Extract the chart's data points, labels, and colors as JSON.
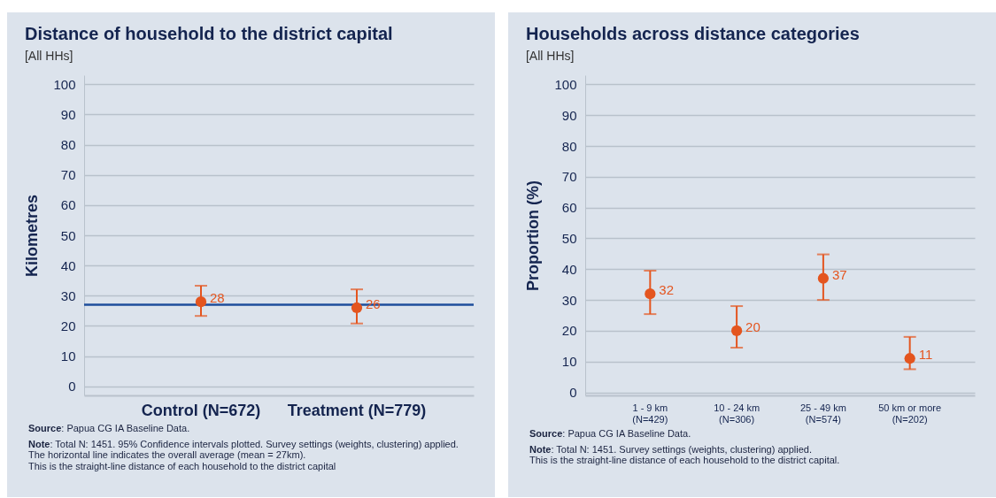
{
  "chart_data": [
    {
      "type": "scatter",
      "title": "Distance of household to the district capital",
      "subtitle": "[All HHs]",
      "ylabel": "Kilometres",
      "categories": [
        "Control (N=672)",
        "Treatment (N=779)"
      ],
      "values": [
        28,
        26
      ],
      "errors": [
        [
          23.3,
          33.3
        ],
        [
          20.8,
          32.1
        ]
      ],
      "color": "#e4551f",
      "marker": "circle",
      "data_labels": true,
      "ylim": [
        -3,
        103
      ],
      "yticks": [
        0,
        10,
        20,
        30,
        40,
        50,
        60,
        70,
        80,
        90,
        100
      ],
      "grid": "y",
      "ref_lines": [
        {
          "axis": "y",
          "value": 27,
          "color": "#1f4e9c"
        }
      ],
      "annotations": [
        "Source: Papua CG IA Baseline Data.",
        "Note: Total N: 1451. 95% Confidence intervals plotted. Survey settings (weights, clustering) applied.\nThe horizontal line indicates the overall average (mean = 27km).\nThis is the straight-line distance of each household to the district capital"
      ]
    },
    {
      "type": "scatter",
      "title": "Households across distance categories",
      "subtitle": "[All HHs]",
      "ylabel": "Proportion (%)",
      "categories": [
        "1 - 9 km\n(N=429)",
        "10 - 24 km\n(N=306)",
        "25 - 49 km\n(N=574)",
        "50 km or more\n(N=202)"
      ],
      "values": [
        32,
        20,
        37,
        11
      ],
      "errors": [
        [
          25.4,
          39.5
        ],
        [
          14.5,
          28
        ],
        [
          30,
          44.8
        ],
        [
          7.5,
          18
        ]
      ],
      "color": "#e4551f",
      "marker": "circle",
      "data_labels": true,
      "ylim": [
        -1,
        103
      ],
      "yticks": [
        0,
        10,
        20,
        30,
        40,
        50,
        60,
        70,
        80,
        90,
        100
      ],
      "grid": "y",
      "annotations": [
        "Source: Papua CG IA Baseline Data.",
        "Note: Total N: 1451. Survey settings (weights, clustering) applied.\nThis is the straight-line distance of each household to the district capital."
      ]
    }
  ]
}
